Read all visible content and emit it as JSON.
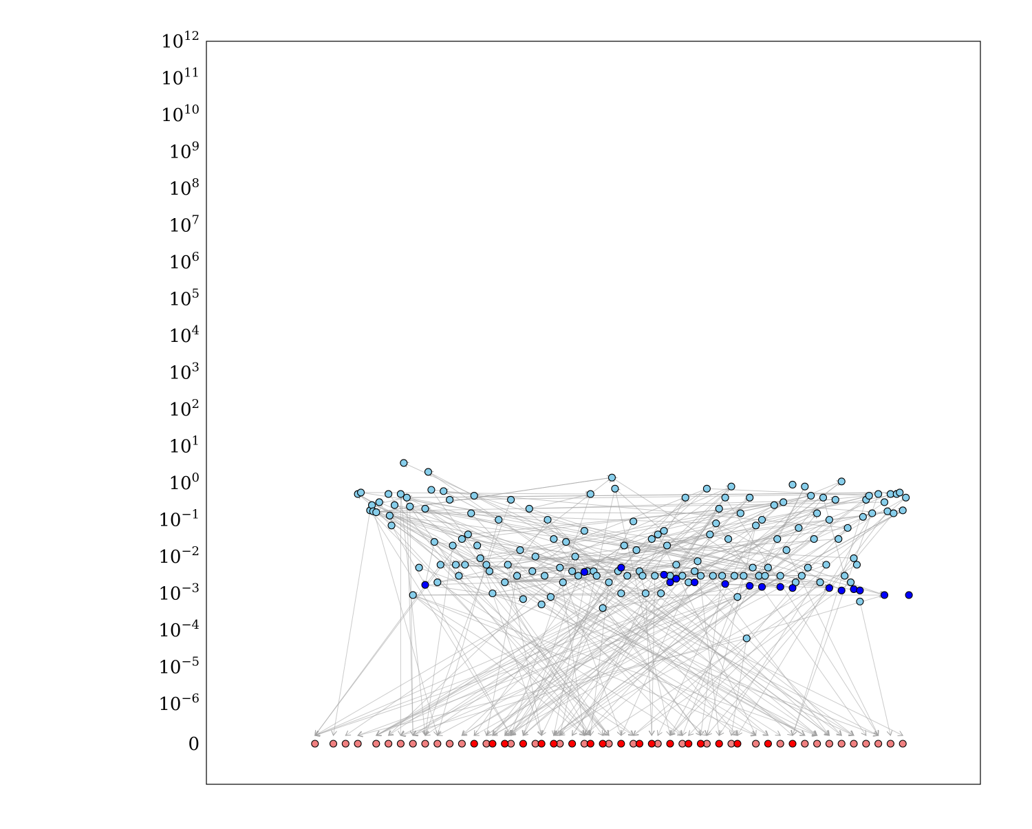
{
  "chart_data": {
    "type": "scatter",
    "title": "",
    "xlabel": "",
    "ylabel": "",
    "x_axis": {
      "visible": false
    },
    "y_axis": {
      "scale": "symlog",
      "range_exponents": [
        -6,
        12
      ],
      "tick_labels": [
        {
          "label": "0",
          "value": 0
        },
        {
          "base": "10",
          "exp": "−6",
          "value": 1e-06
        },
        {
          "base": "10",
          "exp": "−5",
          "value": 1e-05
        },
        {
          "base": "10",
          "exp": "−4",
          "value": 0.0001
        },
        {
          "base": "10",
          "exp": "−3",
          "value": 0.001
        },
        {
          "base": "10",
          "exp": "−2",
          "value": 0.01
        },
        {
          "base": "10",
          "exp": "−1",
          "value": 0.1
        },
        {
          "base": "10",
          "exp": "0",
          "value": 1
        },
        {
          "base": "10",
          "exp": "1",
          "value": 10
        },
        {
          "base": "10",
          "exp": "2",
          "value": 100
        },
        {
          "base": "10",
          "exp": "3",
          "value": 1000
        },
        {
          "base": "10",
          "exp": "4",
          "value": 10000
        },
        {
          "base": "10",
          "exp": "5",
          "value": 100000
        },
        {
          "base": "10",
          "exp": "6",
          "value": 1000000
        },
        {
          "base": "10",
          "exp": "7",
          "value": 10000000
        },
        {
          "base": "10",
          "exp": "8",
          "value": 100000000
        },
        {
          "base": "10",
          "exp": "9",
          "value": 1000000000
        },
        {
          "base": "10",
          "exp": "10",
          "value": 10000000000
        },
        {
          "base": "10",
          "exp": "11",
          "value": 100000000000
        },
        {
          "base": "10",
          "exp": "12",
          "value": 1000000000000
        }
      ]
    },
    "grid": false,
    "legend": "none",
    "colors": {
      "light_blue": "#87ceeb",
      "dark_blue": "#0000ff",
      "light_red": "#f08080",
      "red": "#ff0000",
      "edge": "#000000",
      "arrow": "#a0a0a0"
    },
    "series": [
      {
        "color": "light_blue",
        "points": [
          [
            0.09,
            0.5
          ],
          [
            0.095,
            0.55
          ],
          [
            0.11,
            0.18
          ],
          [
            0.113,
            0.25
          ],
          [
            0.115,
            0.17
          ],
          [
            0.12,
            0.16
          ],
          [
            0.125,
            0.3
          ],
          [
            0.14,
            0.5
          ],
          [
            0.142,
            0.13
          ],
          [
            0.145,
            0.07
          ],
          [
            0.15,
            0.25
          ],
          [
            0.16,
            0.5
          ],
          [
            0.165,
            3.5
          ],
          [
            0.17,
            0.4
          ],
          [
            0.175,
            0.23
          ],
          [
            0.18,
            0.0009
          ],
          [
            0.19,
            0.005
          ],
          [
            0.2,
            0.2
          ],
          [
            0.205,
            2.0
          ],
          [
            0.21,
            0.65
          ],
          [
            0.215,
            0.025
          ],
          [
            0.22,
            0.002
          ],
          [
            0.225,
            0.006
          ],
          [
            0.23,
            0.6
          ],
          [
            0.24,
            0.35
          ],
          [
            0.245,
            0.02
          ],
          [
            0.25,
            0.006
          ],
          [
            0.255,
            0.003
          ],
          [
            0.26,
            0.03
          ],
          [
            0.265,
            0.006
          ],
          [
            0.27,
            0.04
          ],
          [
            0.275,
            0.15
          ],
          [
            0.28,
            0.45
          ],
          [
            0.285,
            0.02
          ],
          [
            0.29,
            0.009
          ],
          [
            0.3,
            0.006
          ],
          [
            0.305,
            0.004
          ],
          [
            0.31,
            0.001
          ],
          [
            0.32,
            0.1
          ],
          [
            0.33,
            0.002
          ],
          [
            0.335,
            0.006
          ],
          [
            0.34,
            0.35
          ],
          [
            0.35,
            0.003
          ],
          [
            0.355,
            0.015
          ],
          [
            0.36,
            0.0007
          ],
          [
            0.37,
            0.2
          ],
          [
            0.375,
            0.004
          ],
          [
            0.38,
            0.01
          ],
          [
            0.39,
            0.0005
          ],
          [
            0.395,
            0.003
          ],
          [
            0.4,
            0.1
          ],
          [
            0.405,
            0.0008
          ],
          [
            0.41,
            0.03
          ],
          [
            0.42,
            0.005
          ],
          [
            0.425,
            0.002
          ],
          [
            0.43,
            0.025
          ],
          [
            0.44,
            0.004
          ],
          [
            0.445,
            0.01
          ],
          [
            0.45,
            0.003
          ],
          [
            0.46,
            0.05
          ],
          [
            0.465,
            0.004
          ],
          [
            0.47,
            0.5
          ],
          [
            0.475,
            0.004
          ],
          [
            0.48,
            0.003
          ],
          [
            0.49,
            0.0004
          ],
          [
            0.5,
            0.002
          ],
          [
            0.505,
            1.4
          ],
          [
            0.51,
            0.7
          ],
          [
            0.515,
            0.004
          ],
          [
            0.52,
            0.001
          ],
          [
            0.525,
            0.02
          ],
          [
            0.53,
            0.003
          ],
          [
            0.54,
            0.09
          ],
          [
            0.545,
            0.015
          ],
          [
            0.55,
            0.004
          ],
          [
            0.555,
            0.003
          ],
          [
            0.56,
            0.001
          ],
          [
            0.57,
            0.03
          ],
          [
            0.575,
            0.003
          ],
          [
            0.58,
            0.04
          ],
          [
            0.585,
            0.001
          ],
          [
            0.59,
            0.05
          ],
          [
            0.595,
            0.02
          ],
          [
            0.6,
            0.003
          ],
          [
            0.61,
            0.006
          ],
          [
            0.62,
            0.003
          ],
          [
            0.625,
            0.4
          ],
          [
            0.63,
            0.002
          ],
          [
            0.64,
            0.004
          ],
          [
            0.645,
            0.0075
          ],
          [
            0.65,
            0.003
          ],
          [
            0.66,
            0.7
          ],
          [
            0.665,
            0.04
          ],
          [
            0.67,
            0.003
          ],
          [
            0.675,
            0.08
          ],
          [
            0.68,
            0.2
          ],
          [
            0.685,
            0.003
          ],
          [
            0.69,
            0.4
          ],
          [
            0.695,
            0.03
          ],
          [
            0.7,
            0.8
          ],
          [
            0.705,
            0.003
          ],
          [
            0.71,
            0.0008
          ],
          [
            0.715,
            0.15
          ],
          [
            0.72,
            0.003
          ],
          [
            0.725,
            6e-05
          ],
          [
            0.73,
            0.4
          ],
          [
            0.735,
            0.005
          ],
          [
            0.74,
            0.07
          ],
          [
            0.745,
            0.003
          ],
          [
            0.75,
            0.1
          ],
          [
            0.755,
            0.003
          ],
          [
            0.76,
            0.005
          ],
          [
            0.77,
            0.25
          ],
          [
            0.775,
            0.03
          ],
          [
            0.78,
            0.003
          ],
          [
            0.785,
            0.3
          ],
          [
            0.79,
            0.015
          ],
          [
            0.8,
            0.9
          ],
          [
            0.805,
            0.002
          ],
          [
            0.81,
            0.06
          ],
          [
            0.815,
            0.003
          ],
          [
            0.82,
            0.8
          ],
          [
            0.825,
            0.005
          ],
          [
            0.83,
            0.45
          ],
          [
            0.835,
            0.03
          ],
          [
            0.84,
            0.15
          ],
          [
            0.845,
            0.002
          ],
          [
            0.85,
            0.4
          ],
          [
            0.855,
            0.006
          ],
          [
            0.86,
            0.1
          ],
          [
            0.87,
            0.35
          ],
          [
            0.875,
            0.03
          ],
          [
            0.88,
            1.1
          ],
          [
            0.885,
            0.003
          ],
          [
            0.89,
            0.06
          ],
          [
            0.895,
            0.002
          ],
          [
            0.9,
            0.009
          ],
          [
            0.905,
            0.006
          ],
          [
            0.91,
            0.0006
          ],
          [
            0.915,
            0.12
          ],
          [
            0.92,
            0.35
          ],
          [
            0.925,
            0.45
          ],
          [
            0.93,
            0.15
          ],
          [
            0.94,
            0.5
          ],
          [
            0.95,
            0.3
          ],
          [
            0.955,
            0.17
          ],
          [
            0.96,
            0.5
          ],
          [
            0.965,
            0.15
          ],
          [
            0.97,
            0.5
          ],
          [
            0.975,
            0.55
          ],
          [
            0.98,
            0.18
          ],
          [
            0.985,
            0.4
          ]
        ]
      },
      {
        "color": "dark_blue",
        "points": [
          [
            0.2,
            0.0017
          ],
          [
            0.46,
            0.0038
          ],
          [
            0.52,
            0.005
          ],
          [
            0.59,
            0.0032
          ],
          [
            0.6,
            0.002
          ],
          [
            0.61,
            0.0025
          ],
          [
            0.64,
            0.002
          ],
          [
            0.69,
            0.0018
          ],
          [
            0.73,
            0.0016
          ],
          [
            0.75,
            0.0015
          ],
          [
            0.78,
            0.0015
          ],
          [
            0.8,
            0.0014
          ],
          [
            0.86,
            0.0014
          ],
          [
            0.88,
            0.0012
          ],
          [
            0.9,
            0.0013
          ],
          [
            0.91,
            0.0012
          ],
          [
            0.95,
            0.0009
          ],
          [
            0.99,
            0.0009
          ]
        ]
      },
      {
        "color": "light_red",
        "points": [
          [
            0.02,
            0
          ],
          [
            0.05,
            0
          ],
          [
            0.07,
            0
          ],
          [
            0.09,
            0
          ],
          [
            0.12,
            0
          ],
          [
            0.14,
            0
          ],
          [
            0.16,
            0
          ],
          [
            0.18,
            0
          ],
          [
            0.2,
            0
          ],
          [
            0.22,
            0
          ],
          [
            0.24,
            0
          ],
          [
            0.26,
            0
          ],
          [
            0.3,
            0
          ],
          [
            0.34,
            0
          ],
          [
            0.38,
            0
          ],
          [
            0.42,
            0
          ],
          [
            0.46,
            0
          ],
          [
            0.5,
            0
          ],
          [
            0.54,
            0
          ],
          [
            0.58,
            0
          ],
          [
            0.62,
            0
          ],
          [
            0.66,
            0
          ],
          [
            0.7,
            0
          ],
          [
            0.74,
            0
          ],
          [
            0.78,
            0
          ],
          [
            0.82,
            0
          ],
          [
            0.84,
            0
          ],
          [
            0.86,
            0
          ],
          [
            0.88,
            0
          ],
          [
            0.9,
            0
          ],
          [
            0.92,
            0
          ],
          [
            0.94,
            0
          ],
          [
            0.96,
            0
          ],
          [
            0.98,
            0
          ]
        ]
      },
      {
        "color": "red",
        "points": [
          [
            0.28,
            0
          ],
          [
            0.31,
            0
          ],
          [
            0.33,
            0
          ],
          [
            0.36,
            0
          ],
          [
            0.39,
            0
          ],
          [
            0.41,
            0
          ],
          [
            0.44,
            0
          ],
          [
            0.47,
            0
          ],
          [
            0.49,
            0
          ],
          [
            0.52,
            0
          ],
          [
            0.55,
            0
          ],
          [
            0.57,
            0
          ],
          [
            0.6,
            0
          ],
          [
            0.63,
            0
          ],
          [
            0.65,
            0
          ],
          [
            0.68,
            0
          ],
          [
            0.71,
            0
          ],
          [
            0.76,
            0
          ],
          [
            0.8,
            0
          ]
        ]
      }
    ]
  }
}
